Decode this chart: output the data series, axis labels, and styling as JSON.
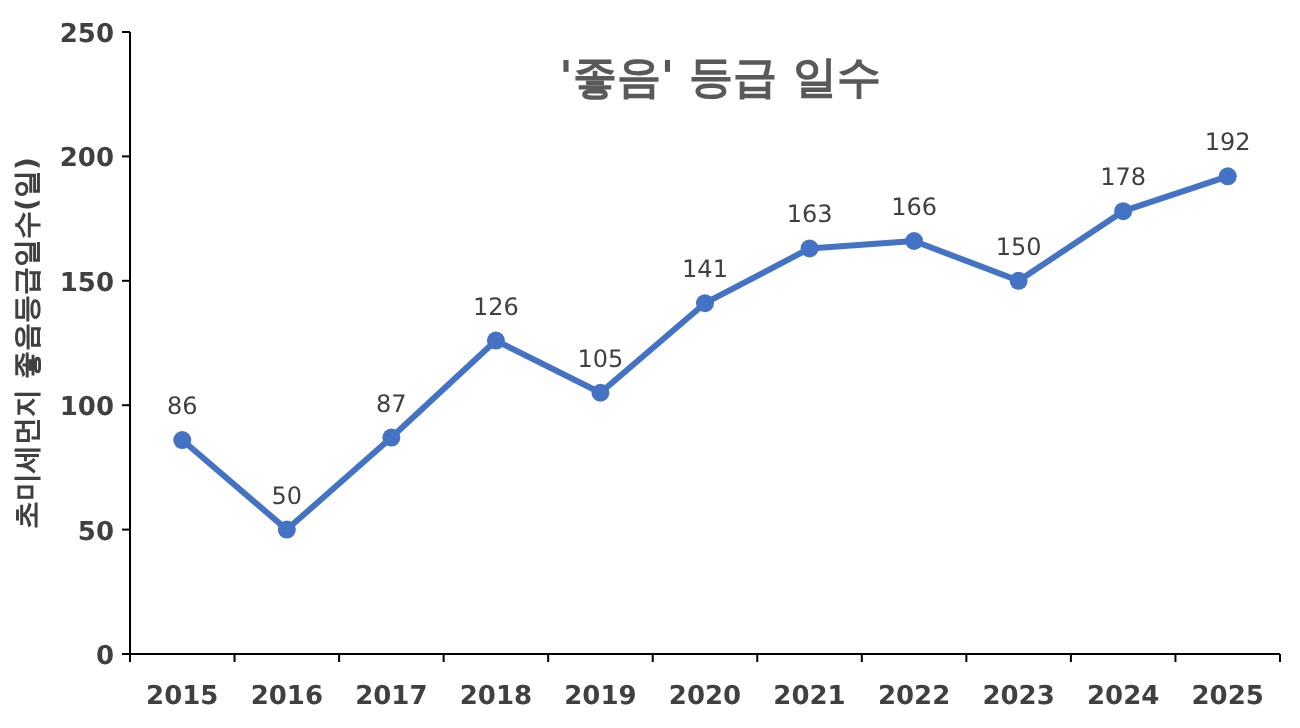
{
  "chart_data": {
    "type": "line",
    "title": "'좋음'  등급 일수",
    "ylabel": "초미세먼지 좋음등급일수(일)",
    "categories": [
      "2015",
      "2016",
      "2017",
      "2018",
      "2019",
      "2020",
      "2021",
      "2022",
      "2023",
      "2024",
      "2025"
    ],
    "series": [
      {
        "color": "#4472c4",
        "values": [
          86,
          50,
          87,
          126,
          105,
          141,
          163,
          166,
          150,
          178,
          192
        ]
      }
    ],
    "ylim": [
      0,
      250
    ],
    "yticks": [
      0,
      50,
      100,
      150,
      200,
      250
    ],
    "data_labels": true,
    "marker": "circle",
    "line_style": "solid"
  }
}
